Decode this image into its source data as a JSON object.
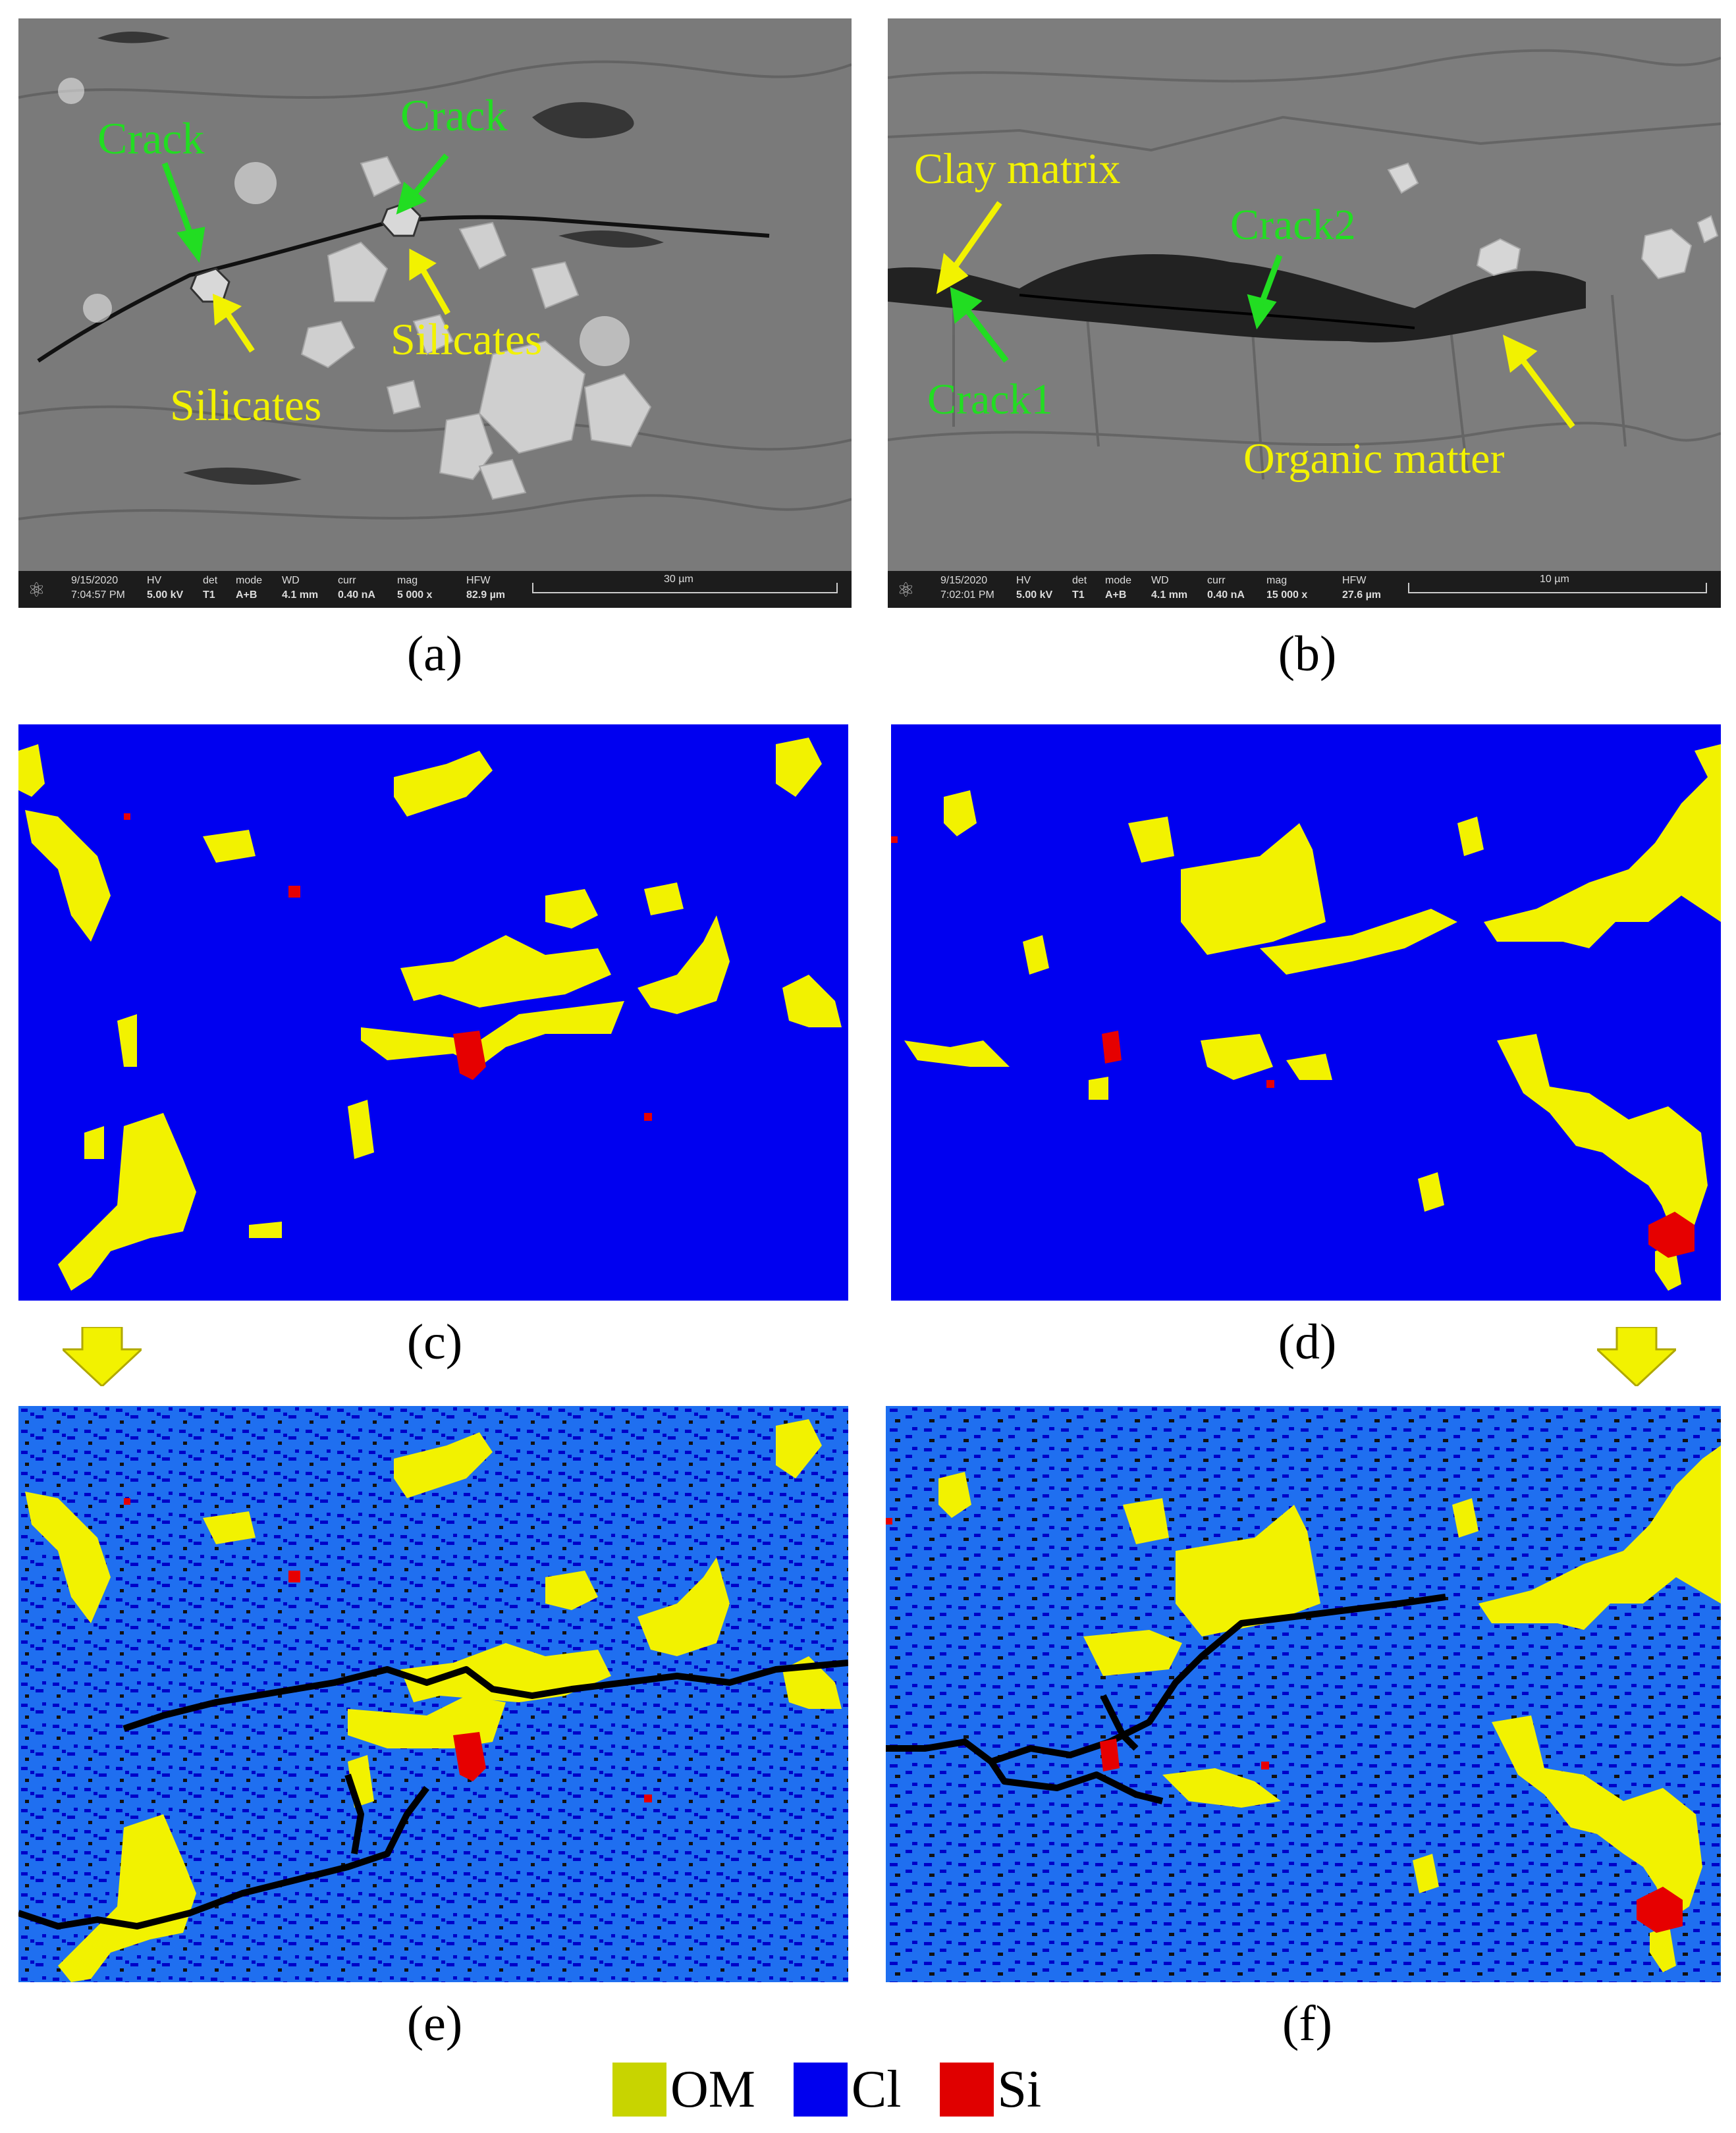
{
  "panels": {
    "a": {
      "caption": "(a)",
      "labels": {
        "crack_left": "Crack",
        "crack_right": "Crack",
        "silicates_left": "Silicates",
        "silicates_right": "Silicates"
      },
      "info_bar": {
        "date": "9/15/2020",
        "time": "7:04:57 PM",
        "hv": "5.00 kV",
        "det": "T1",
        "mode": "A+B",
        "wd": "4.1 mm",
        "curr": "0.40 nA",
        "mag": "5 000 x",
        "hfw": "82.9 µm",
        "scale": "30 µm"
      }
    },
    "b": {
      "caption": "(b)",
      "labels": {
        "clay_matrix": "Clay matrix",
        "crack1": "Crack1",
        "crack2": "Crack2",
        "organic_matter": "Organic matter"
      },
      "info_bar": {
        "date": "9/15/2020",
        "time": "7:02:01 PM",
        "hv": "5.00 kV",
        "det": "T1",
        "mode": "A+B",
        "wd": "4.1 mm",
        "curr": "0.40 nA",
        "mag": "15 000 x",
        "hfw": "27.6 µm",
        "scale": "10 µm"
      }
    },
    "c": {
      "caption": "(c)"
    },
    "d": {
      "caption": "(d)"
    },
    "e": {
      "caption": "(e)"
    },
    "f": {
      "caption": "(f)"
    }
  },
  "info_bar_keys": {
    "hv": "HV",
    "det": "det",
    "mode": "mode",
    "wd": "WD",
    "curr": "curr",
    "mag": "mag",
    "hfw": "HFW"
  },
  "legend": [
    {
      "label": "OM",
      "color": "#c8d400"
    },
    {
      "label": "Cl",
      "color": "#0000ee"
    },
    {
      "label": "Si",
      "color": "#e00000"
    }
  ],
  "colors": {
    "om_yellow": "#f2f200",
    "clay_blue": "#0000f0",
    "clay_light_blue": "#1f6ff0",
    "silicate_red": "#e60000",
    "crack_black": "#000000",
    "label_green": "#22dd22",
    "label_yellow": "#f2f200"
  }
}
